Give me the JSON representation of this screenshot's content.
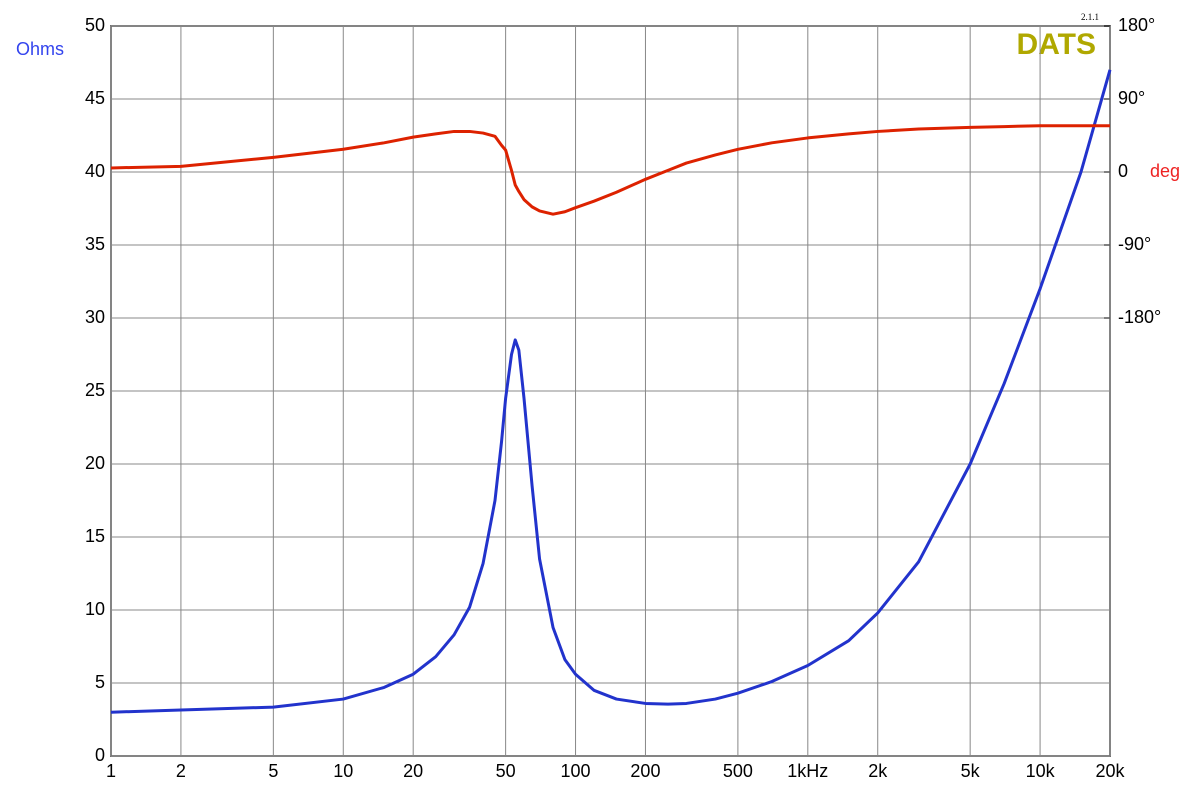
{
  "chart_data": {
    "type": "line",
    "y_label": "Ohms",
    "y2_label": "deg",
    "logo": "DATS",
    "version": "2.1.1",
    "log_x": true,
    "grid": true,
    "x": [
      1,
      2,
      5,
      10,
      15,
      20,
      25,
      30,
      35,
      40,
      45,
      48,
      50,
      53,
      55,
      57,
      60,
      65,
      70,
      80,
      90,
      100,
      120,
      150,
      200,
      250,
      300,
      400,
      500,
      700,
      1000,
      1500,
      2000,
      3000,
      5000,
      7000,
      10000,
      15000,
      20000
    ],
    "series": [
      {
        "color": "#2233cc",
        "axis": "y",
        "values": [
          3.0,
          3.15,
          3.35,
          3.9,
          4.7,
          5.6,
          6.8,
          8.3,
          10.2,
          13.2,
          17.5,
          21.5,
          24.5,
          27.5,
          28.5,
          27.8,
          24.5,
          18.5,
          13.5,
          8.8,
          6.6,
          5.6,
          4.5,
          3.9,
          3.6,
          3.55,
          3.6,
          3.9,
          4.3,
          5.1,
          6.2,
          7.9,
          9.8,
          13.3,
          20,
          25.5,
          32,
          40,
          47
        ]
      },
      {
        "color": "#dd2200",
        "axis": "y2",
        "values": [
          5,
          7,
          18,
          28,
          36,
          43,
          47,
          50,
          50,
          48,
          44,
          33,
          27,
          2,
          -16,
          -24,
          -34,
          -43,
          -48,
          -52,
          -49,
          -44,
          -36,
          -25,
          -9,
          2,
          11,
          21,
          28,
          36,
          42,
          47,
          50,
          53,
          55,
          56,
          57,
          57,
          57
        ]
      }
    ],
    "xlim": [
      1,
      20000
    ],
    "xticks": [
      1,
      2,
      5,
      10,
      20,
      50,
      100,
      200,
      500,
      {
        "value": 1000,
        "label": "1kHz"
      },
      {
        "value": 2000,
        "label": "2k"
      },
      {
        "value": 5000,
        "label": "5k"
      },
      {
        "value": 10000,
        "label": "10k"
      },
      {
        "value": 20000,
        "label": "20k"
      }
    ],
    "ylim": [
      0,
      50
    ],
    "yticks": [
      0,
      5,
      10,
      15,
      20,
      25,
      30,
      35,
      40,
      45,
      50
    ],
    "y2lim": [
      -720,
      180
    ],
    "y2ticks": [
      {
        "value": 180,
        "label": "180°"
      },
      {
        "value": 90,
        "label": "90°"
      },
      {
        "value": 0,
        "label": "0"
      },
      {
        "value": -90,
        "label": "-90°"
      },
      {
        "value": -180,
        "label": "-180°"
      }
    ]
  }
}
